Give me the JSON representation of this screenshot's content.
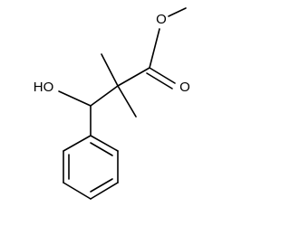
{
  "atoms": [
    {
      "label": "HO"
    },
    {
      "label": "O"
    },
    {
      "label": "O"
    }
  ]
}
